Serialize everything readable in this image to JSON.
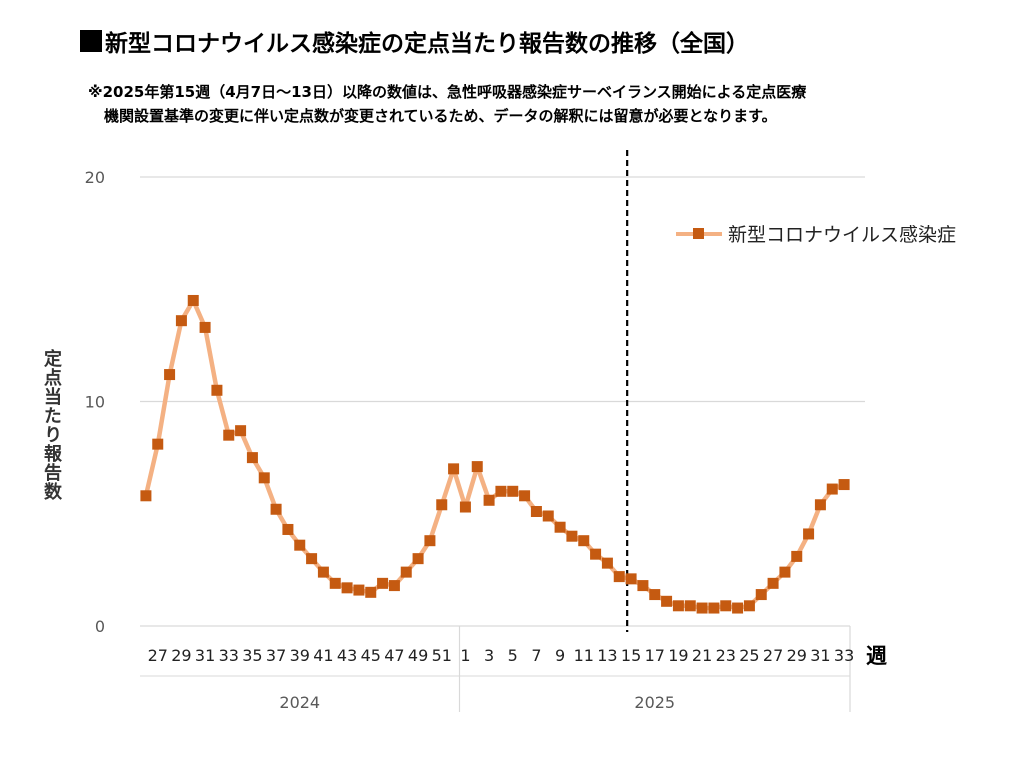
{
  "title": "新型コロナウイルス感染症の定点当たり報告数の推移（全国）",
  "note": {
    "line1": "※2025年第15週（4月7日～13日）以降の数値は、急性呼吸器感染症サーベイランス開始による定点医療",
    "line2": "機関設置基準の変更に伴い定点数が変更されているため、データの解釈には留意が必要となります。"
  },
  "colors": {
    "line": "#f4b183",
    "marker": "#c55a11",
    "grid": "#d9d9d9",
    "text": "#595959"
  },
  "chart_data": {
    "type": "line",
    "ylabel": "定点当たり報告数",
    "xlabel": "週",
    "ylim": [
      0,
      20
    ],
    "yticks": [
      "0",
      "10",
      "20"
    ],
    "grid": true,
    "legend_position": "top-right",
    "marker": "square",
    "x": [
      "26",
      "27",
      "28",
      "29",
      "30",
      "31",
      "32",
      "33",
      "34",
      "35",
      "36",
      "37",
      "38",
      "39",
      "40",
      "41",
      "42",
      "43",
      "44",
      "45",
      "46",
      "47",
      "48",
      "49",
      "50",
      "51",
      "52",
      "1",
      "2",
      "3",
      "4",
      "5",
      "6",
      "7",
      "8",
      "9",
      "10",
      "11",
      "12",
      "13",
      "14",
      "15",
      "16",
      "17",
      "18",
      "19",
      "20",
      "21",
      "22",
      "23",
      "24",
      "25",
      "26",
      "27",
      "28",
      "29",
      "30",
      "31",
      "32",
      "33"
    ],
    "x_tick_labels": [
      "27",
      "29",
      "31",
      "33",
      "35",
      "37",
      "39",
      "41",
      "43",
      "45",
      "47",
      "49",
      "51",
      "1",
      "3",
      "5",
      "7",
      "9",
      "11",
      "13",
      "15",
      "17",
      "19",
      "21",
      "23",
      "25",
      "27",
      "29",
      "31",
      "33"
    ],
    "x_groups": [
      {
        "label": "2024",
        "weeks": 27
      },
      {
        "label": "2025",
        "weeks": 33
      }
    ],
    "series": [
      {
        "name": "新型コロナウイルス感染症",
        "values": [
          5.8,
          8.1,
          11.2,
          13.6,
          14.5,
          13.3,
          10.5,
          8.5,
          8.7,
          7.5,
          6.6,
          5.2,
          4.3,
          3.6,
          3.0,
          2.4,
          1.9,
          1.7,
          1.6,
          1.5,
          1.9,
          1.8,
          2.4,
          3.0,
          3.8,
          5.4,
          7.0,
          5.3,
          7.1,
          5.6,
          6.0,
          6.0,
          5.8,
          5.1,
          4.9,
          4.4,
          4.0,
          3.8,
          3.2,
          2.8,
          2.2,
          2.1,
          1.8,
          1.4,
          1.1,
          0.9,
          0.9,
          0.8,
          0.8,
          0.9,
          0.8,
          0.9,
          1.4,
          1.9,
          2.4,
          3.1,
          4.1,
          5.4,
          6.1,
          6.3
        ]
      }
    ],
    "marker_line_after_week": "2025-14"
  }
}
